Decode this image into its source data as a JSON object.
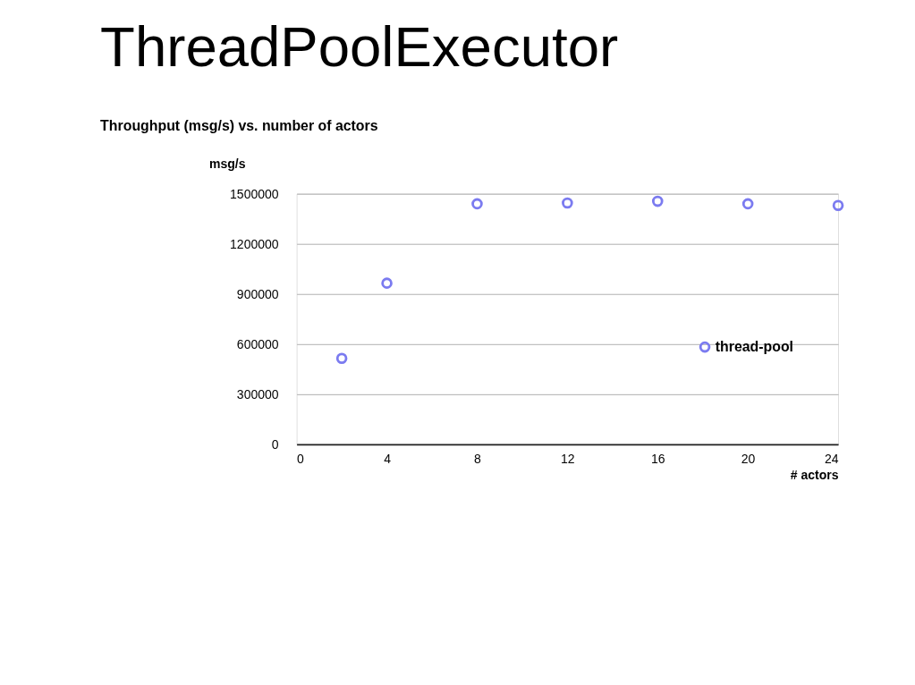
{
  "chart_data": {
    "type": "scatter",
    "title": "ThreadPoolExecutor",
    "subtitle": "Throughput (msg/s) vs. number of actors",
    "xlabel": "# actors",
    "ylabel": "msg/s",
    "x": [
      2,
      4,
      8,
      12,
      16,
      20,
      24
    ],
    "series": [
      {
        "name": "thread-pool",
        "color": "#7b7bf0",
        "values": [
          515000,
          965000,
          1440000,
          1445000,
          1455000,
          1440000,
          1430000
        ]
      }
    ],
    "xlim": [
      0,
      24
    ],
    "xticks": [
      0,
      4,
      8,
      12,
      16,
      20,
      24
    ],
    "ylim": [
      0,
      1500000
    ],
    "yticks": [
      0,
      300000,
      600000,
      900000,
      1200000,
      1500000
    ],
    "grid": "y",
    "legend": "right",
    "marker": "circle"
  }
}
